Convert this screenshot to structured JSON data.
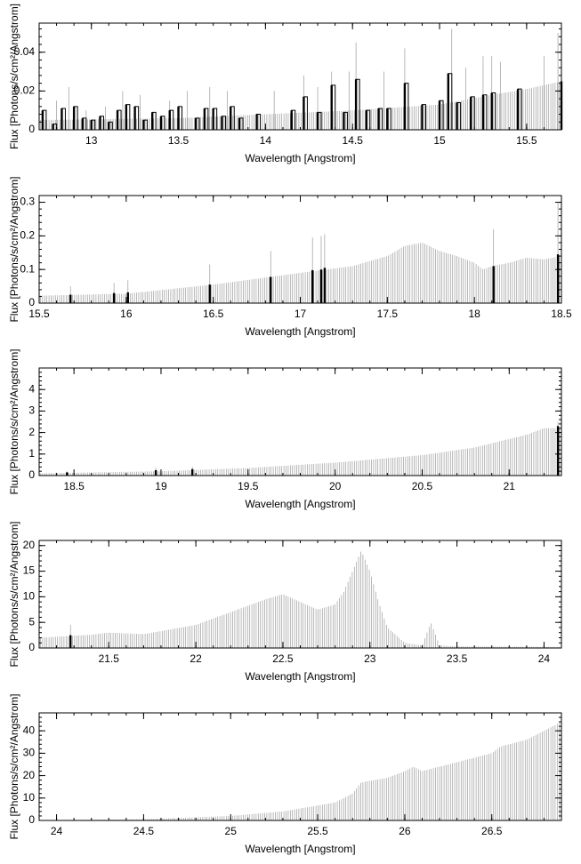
{
  "chart_data": [
    {
      "type": "bar",
      "xlabel": "Wavelength [Angstrom]",
      "ylabel": "Flux [Photons/s/cm²/Angstrom]",
      "xlim": [
        12.7,
        15.7
      ],
      "ylim": [
        0,
        0.055
      ],
      "x_ticks": [
        13,
        13.5,
        14,
        14.5,
        15,
        15.5
      ],
      "x_tick_labels": [
        "13",
        "13.5",
        "14",
        "14.5",
        "15",
        "15.5"
      ],
      "y_ticks": [
        0,
        0.02,
        0.04
      ],
      "y_tick_labels": [
        "0",
        "0.02",
        "0.04"
      ],
      "sensitivity_envelope": [
        [
          12.7,
          0.005
        ],
        [
          13.5,
          0.006
        ],
        [
          14.0,
          0.008
        ],
        [
          14.5,
          0.01
        ],
        [
          15.0,
          0.013
        ],
        [
          15.3,
          0.018
        ],
        [
          15.5,
          0.021
        ],
        [
          15.7,
          0.025
        ]
      ],
      "detected_flux": [
        [
          12.72,
          0.01
        ],
        [
          12.78,
          0.003
        ],
        [
          12.83,
          0.011
        ],
        [
          12.9,
          0.012
        ],
        [
          12.95,
          0.006
        ],
        [
          13.0,
          0.005
        ],
        [
          13.05,
          0.007
        ],
        [
          13.1,
          0.004
        ],
        [
          13.15,
          0.01
        ],
        [
          13.2,
          0.013
        ],
        [
          13.25,
          0.012
        ],
        [
          13.3,
          0.005
        ],
        [
          13.35,
          0.009
        ],
        [
          13.4,
          0.007
        ],
        [
          13.45,
          0.01
        ],
        [
          13.5,
          0.012
        ],
        [
          13.6,
          0.006
        ],
        [
          13.65,
          0.011
        ],
        [
          13.7,
          0.011
        ],
        [
          13.75,
          0.007
        ],
        [
          13.8,
          0.012
        ],
        [
          13.85,
          0.006
        ],
        [
          13.95,
          0.008
        ],
        [
          14.15,
          0.01
        ],
        [
          14.22,
          0.017
        ],
        [
          14.3,
          0.009
        ],
        [
          14.38,
          0.023
        ],
        [
          14.45,
          0.009
        ],
        [
          14.52,
          0.026
        ],
        [
          14.58,
          0.01
        ],
        [
          14.65,
          0.011
        ],
        [
          14.7,
          0.011
        ],
        [
          14.8,
          0.024
        ],
        [
          14.9,
          0.013
        ],
        [
          15.0,
          0.015
        ],
        [
          15.05,
          0.029
        ],
        [
          15.1,
          0.014
        ],
        [
          15.18,
          0.017
        ],
        [
          15.25,
          0.018
        ],
        [
          15.3,
          0.019
        ],
        [
          15.45,
          0.021
        ],
        [
          15.7,
          0.025
        ]
      ],
      "error_bars": [
        [
          12.8,
          0.015
        ],
        [
          12.87,
          0.022
        ],
        [
          12.97,
          0.01
        ],
        [
          13.08,
          0.012
        ],
        [
          13.18,
          0.02
        ],
        [
          13.28,
          0.018
        ],
        [
          13.45,
          0.015
        ],
        [
          13.55,
          0.02
        ],
        [
          13.68,
          0.022
        ],
        [
          13.78,
          0.02
        ],
        [
          14.05,
          0.02
        ],
        [
          14.22,
          0.028
        ],
        [
          14.3,
          0.022
        ],
        [
          14.38,
          0.03
        ],
        [
          14.48,
          0.03
        ],
        [
          14.52,
          0.045
        ],
        [
          14.68,
          0.03
        ],
        [
          14.8,
          0.042
        ],
        [
          15.07,
          0.052
        ],
        [
          15.15,
          0.032
        ],
        [
          15.25,
          0.038
        ],
        [
          15.3,
          0.038
        ],
        [
          15.35,
          0.035
        ],
        [
          15.6,
          0.038
        ],
        [
          15.68,
          0.05
        ]
      ]
    },
    {
      "type": "bar",
      "xlabel": "Wavelength [Angstrom]",
      "ylabel": "Flux [Photons/s/cm²/Angstrom]",
      "xlim": [
        15.5,
        18.5
      ],
      "ylim": [
        0,
        0.32
      ],
      "x_ticks": [
        15.5,
        16,
        16.5,
        17,
        17.5,
        18,
        18.5
      ],
      "x_tick_labels": [
        "15.5",
        "16",
        "16.5",
        "17",
        "17.5",
        "18",
        "18.5"
      ],
      "y_ticks": [
        0,
        0.1,
        0.2,
        0.3
      ],
      "y_tick_labels": [
        "0",
        "0.1",
        "0.2",
        "0.3"
      ],
      "sensitivity_envelope": [
        [
          15.5,
          0.022
        ],
        [
          16.0,
          0.028
        ],
        [
          16.5,
          0.055
        ],
        [
          17.0,
          0.09
        ],
        [
          17.3,
          0.11
        ],
        [
          17.5,
          0.14
        ],
        [
          17.6,
          0.17
        ],
        [
          17.7,
          0.18
        ],
        [
          17.8,
          0.155
        ],
        [
          17.9,
          0.14
        ],
        [
          18.0,
          0.12
        ],
        [
          18.05,
          0.1
        ],
        [
          18.1,
          0.11
        ],
        [
          18.2,
          0.12
        ],
        [
          18.3,
          0.135
        ],
        [
          18.4,
          0.13
        ],
        [
          18.5,
          0.14
        ]
      ],
      "detected_flux": [
        [
          15.68,
          0.025
        ],
        [
          15.93,
          0.03
        ],
        [
          16.01,
          0.032
        ],
        [
          16.48,
          0.055
        ],
        [
          16.83,
          0.078
        ],
        [
          17.07,
          0.098
        ],
        [
          17.12,
          0.1
        ],
        [
          17.14,
          0.105
        ],
        [
          18.11,
          0.11
        ],
        [
          18.48,
          0.145
        ]
      ],
      "error_bars": [
        [
          15.68,
          0.05
        ],
        [
          15.93,
          0.06
        ],
        [
          16.01,
          0.068
        ],
        [
          16.48,
          0.115
        ],
        [
          16.83,
          0.155
        ],
        [
          17.07,
          0.195
        ],
        [
          17.12,
          0.2
        ],
        [
          17.14,
          0.205
        ],
        [
          18.11,
          0.22
        ],
        [
          18.48,
          0.3
        ]
      ]
    },
    {
      "type": "bar",
      "xlabel": "Wavelength [Angstrom]",
      "ylabel": "Flux [Photons/s/cm²/Angstrom]",
      "xlim": [
        18.3,
        21.3
      ],
      "ylim": [
        0,
        5
      ],
      "x_ticks": [
        18.5,
        19,
        19.5,
        20,
        20.5,
        21
      ],
      "x_tick_labels": [
        "18.5",
        "19",
        "19.5",
        "20",
        "20.5",
        "21"
      ],
      "y_ticks": [
        0,
        1,
        2,
        3,
        4
      ],
      "y_tick_labels": [
        "0",
        "1",
        "2",
        "3",
        "4"
      ],
      "sensitivity_envelope": [
        [
          18.3,
          0.1
        ],
        [
          18.5,
          0.13
        ],
        [
          19.0,
          0.2
        ],
        [
          19.5,
          0.35
        ],
        [
          20.0,
          0.6
        ],
        [
          20.5,
          0.95
        ],
        [
          20.8,
          1.3
        ],
        [
          21.0,
          1.7
        ],
        [
          21.1,
          1.9
        ],
        [
          21.2,
          2.2
        ],
        [
          21.3,
          2.2
        ]
      ],
      "detected_flux": [
        [
          18.46,
          0.15
        ],
        [
          18.97,
          0.25
        ],
        [
          19.18,
          0.3
        ],
        [
          21.28,
          2.3
        ]
      ],
      "error_bars": [
        [
          18.46,
          0.2
        ],
        [
          18.97,
          0.35
        ],
        [
          19.18,
          0.4
        ],
        [
          21.28,
          2.5
        ]
      ]
    },
    {
      "type": "bar",
      "xlabel": "Wavelength [Angstrom]",
      "ylabel": "Flux [Photons/s/cm²/Angstrom]",
      "xlim": [
        21.1,
        24.1
      ],
      "ylim": [
        0,
        21
      ],
      "x_ticks": [
        21.5,
        22,
        22.5,
        23,
        23.5,
        24
      ],
      "x_tick_labels": [
        "21.5",
        "22",
        "22.5",
        "23",
        "23.5",
        "24"
      ],
      "y_ticks": [
        0,
        5,
        10,
        15,
        20
      ],
      "y_tick_labels": [
        "0",
        "5",
        "10",
        "15",
        "20"
      ],
      "sensitivity_envelope": [
        [
          21.1,
          2.0
        ],
        [
          21.4,
          2.6
        ],
        [
          21.5,
          3.0
        ],
        [
          21.7,
          2.7
        ],
        [
          22.0,
          4.5
        ],
        [
          22.2,
          7.0
        ],
        [
          22.4,
          9.5
        ],
        [
          22.5,
          10.5
        ],
        [
          22.6,
          9.0
        ],
        [
          22.7,
          7.5
        ],
        [
          22.8,
          8.5
        ],
        [
          22.85,
          11.0
        ],
        [
          22.9,
          15.0
        ],
        [
          22.95,
          19.0
        ],
        [
          23.0,
          15.0
        ],
        [
          23.05,
          9.0
        ],
        [
          23.1,
          4.0
        ],
        [
          23.2,
          1.0
        ],
        [
          23.3,
          0.5
        ],
        [
          23.35,
          5.0
        ],
        [
          23.4,
          0.5
        ],
        [
          23.5,
          0.3
        ],
        [
          24.1,
          0.2
        ]
      ],
      "detected_flux": [
        [
          21.28,
          2.5
        ]
      ],
      "error_bars": [
        [
          21.28,
          4.5
        ]
      ]
    },
    {
      "type": "bar",
      "xlabel": "Wavelength [Angstrom]",
      "ylabel": "Flux [Photons/s/cm²/Angstrom]",
      "xlim": [
        23.9,
        26.9
      ],
      "ylim": [
        0,
        48
      ],
      "x_ticks": [
        24,
        24.5,
        25,
        25.5,
        26,
        26.5
      ],
      "x_tick_labels": [
        "24",
        "24.5",
        "25",
        "25.5",
        "26",
        "26.5"
      ],
      "y_ticks": [
        0,
        10,
        20,
        30,
        40
      ],
      "y_tick_labels": [
        "0",
        "10",
        "20",
        "30",
        "40"
      ],
      "sensitivity_envelope": [
        [
          23.9,
          0.1
        ],
        [
          24.5,
          0.5
        ],
        [
          25.0,
          2.0
        ],
        [
          25.3,
          4.0
        ],
        [
          25.6,
          8.0
        ],
        [
          25.7,
          12.0
        ],
        [
          25.75,
          17.0
        ],
        [
          25.9,
          19.0
        ],
        [
          26.0,
          22.0
        ],
        [
          26.05,
          24.0
        ],
        [
          26.1,
          22.0
        ],
        [
          26.3,
          26.0
        ],
        [
          26.5,
          30.0
        ],
        [
          26.55,
          33.0
        ],
        [
          26.7,
          36.0
        ],
        [
          26.9,
          44.0
        ]
      ],
      "detected_flux": [],
      "error_bars": []
    }
  ]
}
